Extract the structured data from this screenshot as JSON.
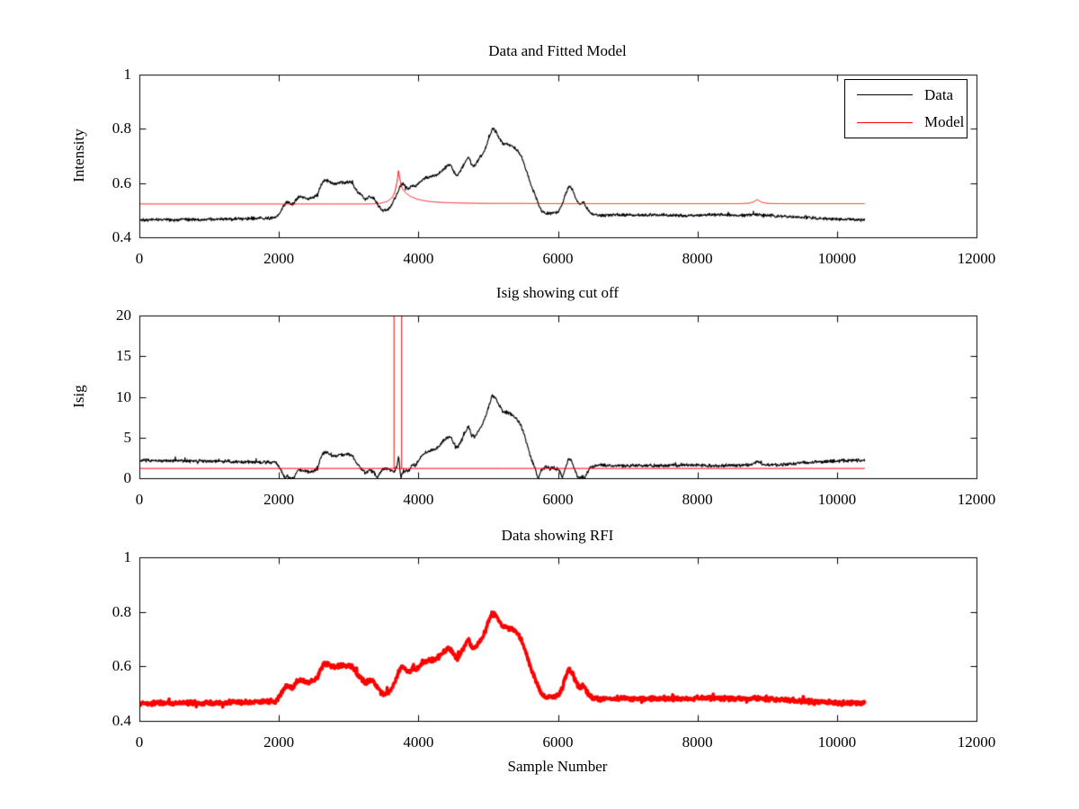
{
  "figure": {
    "background": "#ffffff",
    "text_color": "#000000",
    "data_color": "#000000",
    "model_color": "#ff0000",
    "rfi_color": "#ff0000"
  },
  "chart_data": [
    {
      "type": "line",
      "title": "Data and Fitted Model",
      "ylabel": "Intensity",
      "xlim": [
        0,
        12000
      ],
      "ylim": [
        0.4,
        1
      ],
      "xticks": {
        "values": [
          0,
          2000,
          4000,
          6000,
          8000,
          10000,
          12000
        ],
        "labels": [
          "0",
          "2000",
          "4000",
          "6000",
          "8000",
          "10000",
          "12000"
        ]
      },
      "yticks": {
        "values": [
          0.4,
          0.6,
          0.8,
          1
        ],
        "labels": [
          "0.4",
          "0.6",
          "0.8",
          "1"
        ]
      },
      "grid": false,
      "legend": {
        "position": "northeast",
        "entries": [
          {
            "label": "Data",
            "color": "#000000"
          },
          {
            "label": "Model",
            "color": "#ff0000"
          }
        ]
      },
      "series": [
        {
          "name": "Data",
          "curve": "data",
          "color": "#000000",
          "line_width": 1.15,
          "noise": 0.0042
        },
        {
          "name": "Model",
          "curve": "model",
          "color": "#ff0000",
          "line_width": 1.0,
          "noise": 0
        }
      ]
    },
    {
      "type": "line",
      "title": "Isig showing cut off",
      "ylabel": "Isig",
      "xlim": [
        0,
        12000
      ],
      "ylim": [
        0,
        20
      ],
      "xticks": {
        "values": [
          0,
          2000,
          4000,
          6000,
          8000,
          10000,
          12000
        ],
        "labels": [
          "0",
          "2000",
          "4000",
          "6000",
          "8000",
          "10000",
          "12000"
        ]
      },
      "yticks": {
        "values": [
          0,
          5,
          10,
          15,
          20
        ],
        "labels": [
          "0",
          "5",
          "10",
          "15",
          "20"
        ]
      },
      "grid": false,
      "series": [
        {
          "name": "Isig",
          "derived": "abs_diff_of_data_and_model",
          "scale": 37,
          "color": "#000000",
          "line_width": 1.15,
          "noise": 0.0042
        },
        {
          "name": "Cut off",
          "type": "cutoff",
          "color": "#ff0000",
          "line_width": 1.0,
          "level": 1.2,
          "vertical_lines_x": [
            3650,
            3760
          ],
          "vertical_top": 20
        }
      ]
    },
    {
      "type": "line",
      "title": "Data showing RFI",
      "xlabel": "Sample Number",
      "xlim": [
        0,
        12000
      ],
      "ylim": [
        0.4,
        1
      ],
      "xticks": {
        "values": [
          0,
          2000,
          4000,
          6000,
          8000,
          10000,
          12000
        ],
        "labels": [
          "0",
          "2000",
          "4000",
          "6000",
          "8000",
          "10000",
          "12000"
        ]
      },
      "yticks": {
        "values": [
          0.4,
          0.6,
          0.8,
          1
        ],
        "labels": [
          "0.4",
          "0.6",
          "0.8",
          "1"
        ]
      },
      "grid": false,
      "series": [
        {
          "name": "Data with RFI",
          "curve": "data",
          "color": "#ff0000",
          "line_width": 3.6,
          "noise": 0.006
        }
      ]
    }
  ],
  "curves": {
    "x_end": 10400,
    "data": {
      "anchors": [
        [
          0,
          0.465
        ],
        [
          150,
          0.464
        ],
        [
          300,
          0.466
        ],
        [
          450,
          0.464
        ],
        [
          600,
          0.465
        ],
        [
          750,
          0.466
        ],
        [
          900,
          0.465
        ],
        [
          1050,
          0.466
        ],
        [
          1200,
          0.467
        ],
        [
          1350,
          0.468
        ],
        [
          1500,
          0.468
        ],
        [
          1650,
          0.469
        ],
        [
          1800,
          0.47
        ],
        [
          1950,
          0.472
        ],
        [
          2010,
          0.488
        ],
        [
          2060,
          0.512
        ],
        [
          2110,
          0.53
        ],
        [
          2160,
          0.524
        ],
        [
          2210,
          0.522
        ],
        [
          2260,
          0.545
        ],
        [
          2310,
          0.552
        ],
        [
          2360,
          0.546
        ],
        [
          2430,
          0.542
        ],
        [
          2500,
          0.547
        ],
        [
          2550,
          0.558
        ],
        [
          2600,
          0.592
        ],
        [
          2650,
          0.61
        ],
        [
          2700,
          0.608
        ],
        [
          2760,
          0.6
        ],
        [
          2820,
          0.597
        ],
        [
          2880,
          0.604
        ],
        [
          2940,
          0.601
        ],
        [
          3000,
          0.604
        ],
        [
          3060,
          0.597
        ],
        [
          3120,
          0.57
        ],
        [
          3180,
          0.556
        ],
        [
          3240,
          0.54
        ],
        [
          3300,
          0.549
        ],
        [
          3360,
          0.545
        ],
        [
          3420,
          0.518
        ],
        [
          3470,
          0.501
        ],
        [
          3520,
          0.498
        ],
        [
          3570,
          0.505
        ],
        [
          3620,
          0.522
        ],
        [
          3670,
          0.548
        ],
        [
          3720,
          0.578
        ],
        [
          3760,
          0.6
        ],
        [
          3810,
          0.59
        ],
        [
          3860,
          0.578
        ],
        [
          3910,
          0.593
        ],
        [
          3960,
          0.587
        ],
        [
          4010,
          0.601
        ],
        [
          4060,
          0.615
        ],
        [
          4120,
          0.621
        ],
        [
          4180,
          0.624
        ],
        [
          4240,
          0.626
        ],
        [
          4300,
          0.636
        ],
        [
          4360,
          0.652
        ],
        [
          4420,
          0.664
        ],
        [
          4460,
          0.666
        ],
        [
          4510,
          0.641
        ],
        [
          4560,
          0.628
        ],
        [
          4620,
          0.653
        ],
        [
          4680,
          0.683
        ],
        [
          4720,
          0.7
        ],
        [
          4760,
          0.668
        ],
        [
          4810,
          0.663
        ],
        [
          4860,
          0.686
        ],
        [
          4920,
          0.707
        ],
        [
          4960,
          0.729
        ],
        [
          5010,
          0.766
        ],
        [
          5060,
          0.8
        ],
        [
          5110,
          0.791
        ],
        [
          5160,
          0.766
        ],
        [
          5210,
          0.746
        ],
        [
          5280,
          0.743
        ],
        [
          5350,
          0.736
        ],
        [
          5420,
          0.72
        ],
        [
          5470,
          0.701
        ],
        [
          5520,
          0.667
        ],
        [
          5570,
          0.628
        ],
        [
          5620,
          0.588
        ],
        [
          5670,
          0.558
        ],
        [
          5720,
          0.522
        ],
        [
          5770,
          0.494
        ],
        [
          5830,
          0.487
        ],
        [
          5890,
          0.489
        ],
        [
          5950,
          0.491
        ],
        [
          6010,
          0.494
        ],
        [
          6060,
          0.521
        ],
        [
          6110,
          0.561
        ],
        [
          6160,
          0.59
        ],
        [
          6210,
          0.574
        ],
        [
          6260,
          0.54
        ],
        [
          6310,
          0.521
        ],
        [
          6360,
          0.531
        ],
        [
          6410,
          0.509
        ],
        [
          6460,
          0.49
        ],
        [
          6520,
          0.484
        ],
        [
          6600,
          0.481
        ],
        [
          6700,
          0.482
        ],
        [
          6800,
          0.483
        ],
        [
          6950,
          0.483
        ],
        [
          7100,
          0.481
        ],
        [
          7300,
          0.482
        ],
        [
          7500,
          0.483
        ],
        [
          7700,
          0.481
        ],
        [
          7900,
          0.48
        ],
        [
          8100,
          0.482
        ],
        [
          8300,
          0.483
        ],
        [
          8500,
          0.481
        ],
        [
          8700,
          0.482
        ],
        [
          8900,
          0.483
        ],
        [
          9100,
          0.48
        ],
        [
          9300,
          0.477
        ],
        [
          9500,
          0.473
        ],
        [
          9700,
          0.47
        ],
        [
          9900,
          0.468
        ],
        [
          10100,
          0.466
        ],
        [
          10250,
          0.465
        ],
        [
          10400,
          0.464
        ]
      ]
    },
    "model": {
      "anchors": [
        [
          0,
          0.523
        ],
        [
          3300,
          0.523
        ],
        [
          3450,
          0.525
        ],
        [
          3550,
          0.532
        ],
        [
          3620,
          0.545
        ],
        [
          3660,
          0.565
        ],
        [
          3695,
          0.605
        ],
        [
          3715,
          0.648
        ],
        [
          3735,
          0.615
        ],
        [
          3760,
          0.585
        ],
        [
          3800,
          0.568
        ],
        [
          3850,
          0.557
        ],
        [
          3900,
          0.549
        ],
        [
          3980,
          0.541
        ],
        [
          4060,
          0.536
        ],
        [
          4160,
          0.532
        ],
        [
          4300,
          0.529
        ],
        [
          4500,
          0.527
        ],
        [
          4700,
          0.526
        ],
        [
          5000,
          0.525
        ],
        [
          5500,
          0.525
        ],
        [
          6000,
          0.524
        ],
        [
          7000,
          0.524
        ],
        [
          8000,
          0.524
        ],
        [
          8600,
          0.524
        ],
        [
          8740,
          0.526
        ],
        [
          8800,
          0.53
        ],
        [
          8860,
          0.539
        ],
        [
          8920,
          0.529
        ],
        [
          9000,
          0.525
        ],
        [
          9200,
          0.524
        ],
        [
          10400,
          0.524
        ]
      ]
    }
  }
}
